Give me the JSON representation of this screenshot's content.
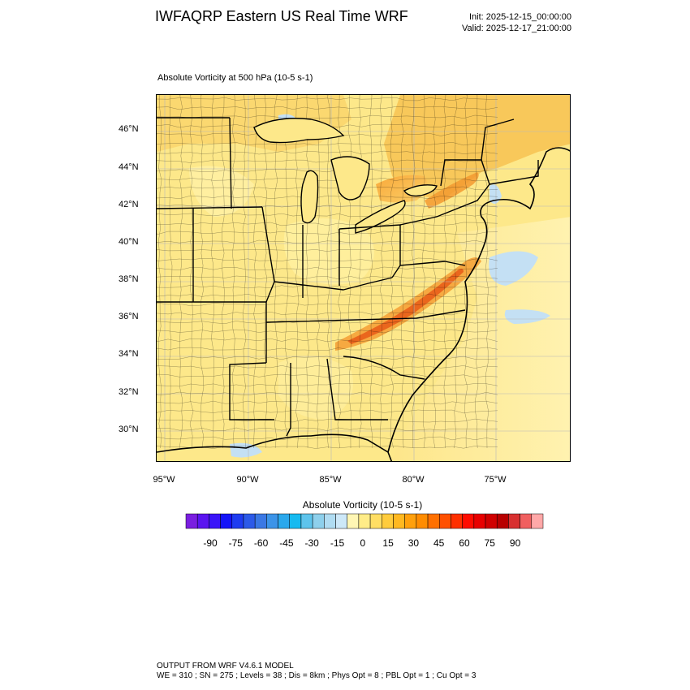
{
  "header": {
    "title": "IWFAQRP Eastern US Real Time WRF",
    "init": "Init: 2025-12-15_00:00:00",
    "valid": "Valid: 2025-12-17_21:00:00"
  },
  "map": {
    "field_title": "Absolute Vorticity at 500 hPa   (10-5 s-1)",
    "lat_labels": [
      "46°N",
      "44°N",
      "42°N",
      "40°N",
      "38°N",
      "36°N",
      "34°N",
      "32°N",
      "30°N"
    ],
    "lon_labels": [
      "95°W",
      "90°W",
      "85°W",
      "80°W",
      "75°W"
    ],
    "colors": {
      "background_field": "#fde88a",
      "low_positive": "#fff4b0",
      "mid_positive": "#f8c048",
      "high_positive": "#f08020",
      "max_band": "#e04010",
      "negative": "#c4e0f4",
      "boundaries": "#000000"
    }
  },
  "colorbar": {
    "title": "Absolute Vorticity  (10-5 s-1)",
    "tick_labels": [
      "-90",
      "-75",
      "-60",
      "-45",
      "-30",
      "-15",
      "0",
      "15",
      "30",
      "45",
      "60",
      "75",
      "90"
    ],
    "colors": [
      "#7a1ee0",
      "#5a14f0",
      "#3a14f8",
      "#1414f8",
      "#1e3cf0",
      "#2c5ae8",
      "#3a78e4",
      "#3c94e8",
      "#2aa8ec",
      "#16baf0",
      "#5ec4ec",
      "#8ed0ec",
      "#b0dcf2",
      "#cde8f8",
      "#fff6b4",
      "#ffec88",
      "#ffde64",
      "#ffcc3c",
      "#ffb820",
      "#ffa00c",
      "#ff8c00",
      "#ff7000",
      "#ff5000",
      "#ff3000",
      "#ff0c00",
      "#e80000",
      "#d00000",
      "#b80000",
      "#d83030",
      "#f06060",
      "#ffa8a8"
    ]
  },
  "footer": {
    "line1": "OUTPUT FROM WRF V4.6.1 MODEL",
    "line2": "WE = 310 ; SN = 275 ; Levels = 38 ; Dis = 8km ; Phys Opt = 8 ; PBL Opt = 1 ; Cu Opt = 3"
  }
}
